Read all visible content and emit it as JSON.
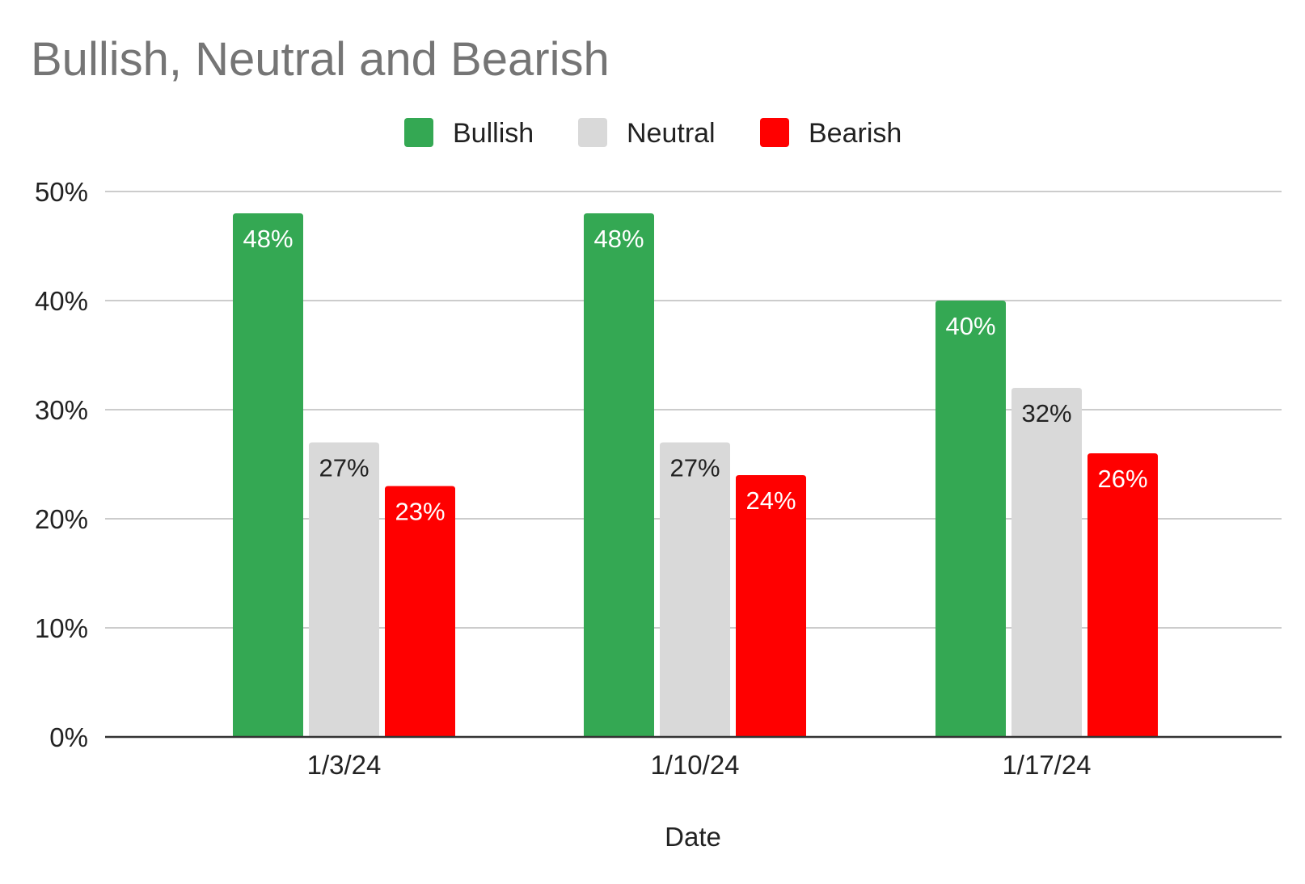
{
  "chart_data": {
    "type": "bar",
    "title": "Bullish, Neutral and Bearish",
    "xlabel": "Date",
    "ylabel": "",
    "categories": [
      "1/3/24",
      "1/10/24",
      "1/17/24"
    ],
    "series": [
      {
        "name": "Bullish",
        "color": "#34a853",
        "label_color": "#ffffff",
        "values": [
          48,
          48,
          40
        ],
        "labels": [
          "48%",
          "48%",
          "40%"
        ]
      },
      {
        "name": "Neutral",
        "color": "#d9d9d9",
        "label_color": "#222222",
        "values": [
          27,
          27,
          32
        ],
        "labels": [
          "27%",
          "27%",
          "32%"
        ]
      },
      {
        "name": "Bearish",
        "color": "#ff0000",
        "label_color": "#ffffff",
        "values": [
          23,
          24,
          26
        ],
        "labels": [
          "23%",
          "24%",
          "26%"
        ]
      }
    ],
    "ylim": [
      0,
      50
    ],
    "yticks": [
      0,
      10,
      20,
      30,
      40,
      50
    ],
    "ytick_labels": [
      "0%",
      "10%",
      "20%",
      "30%",
      "40%",
      "50%"
    ],
    "grid": true,
    "legend_position": "top-center"
  }
}
